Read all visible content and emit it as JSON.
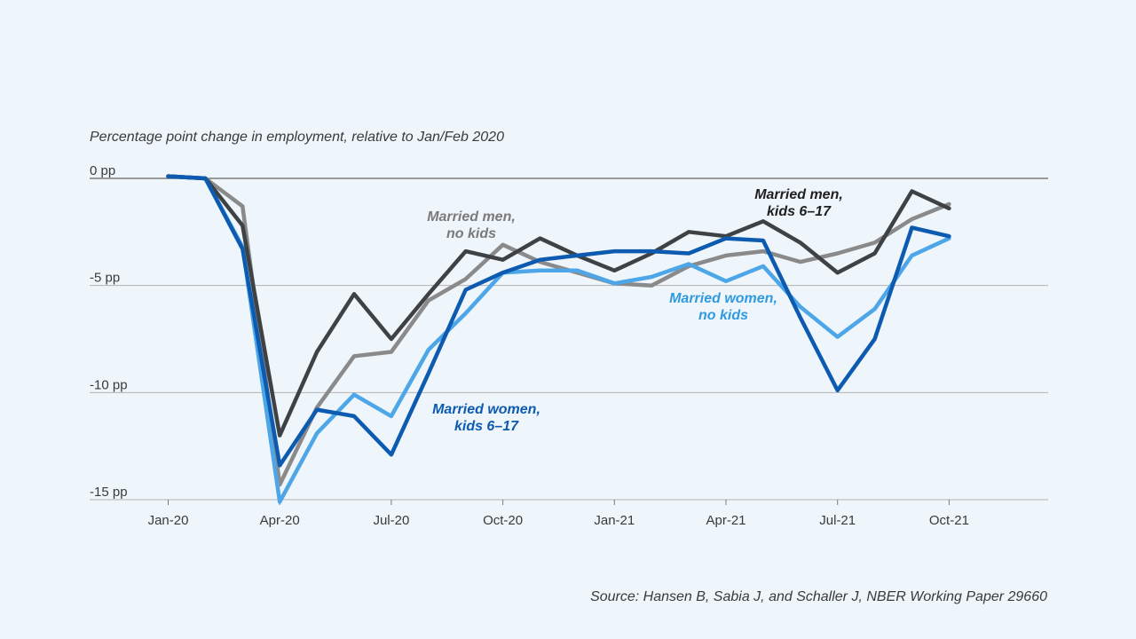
{
  "subtitle": "Percentage point change in employment, relative to Jan/Feb 2020",
  "source": "Source:  Hansen B, Sabia J,  and Schaller J, NBER Working Paper 29660",
  "chart_data": {
    "type": "line",
    "title": "",
    "ylabel": "Percentage point change in employment, relative to Jan/Feb 2020",
    "xlabel": "",
    "ylim": [
      -15,
      0
    ],
    "y_ticks": [
      0,
      -5,
      -10,
      -15
    ],
    "y_tick_labels": [
      "0 pp",
      "-5 pp",
      "-10 pp",
      "-15 pp"
    ],
    "x": [
      "Jan-20",
      "Feb-20",
      "Mar-20",
      "Apr-20",
      "May-20",
      "Jun-20",
      "Jul-20",
      "Aug-20",
      "Sep-20",
      "Oct-20",
      "Nov-20",
      "Dec-20",
      "Jan-21",
      "Feb-21",
      "Mar-21",
      "Apr-21",
      "May-21",
      "Jun-21",
      "Jul-21",
      "Aug-21",
      "Sep-21",
      "Oct-21"
    ],
    "x_tick_labels": [
      "Jan-20",
      "Apr-20",
      "Jul-20",
      "Oct-20",
      "Jan-21",
      "Apr-21",
      "Jul-21",
      "Oct-21"
    ],
    "grid": "horizontal",
    "series": [
      {
        "name": "Married men, no kids",
        "label_lines": [
          "Married men,",
          "no kids"
        ],
        "color": "#8a8a8a",
        "values": [
          0.1,
          0.0,
          -1.3,
          -14.3,
          -10.7,
          -8.3,
          -8.1,
          -5.7,
          -4.7,
          -3.1,
          -3.9,
          -4.4,
          -4.9,
          -5.0,
          -4.1,
          -3.6,
          -3.4,
          -3.9,
          -3.5,
          -3.0,
          -1.9,
          -1.2
        ]
      },
      {
        "name": "Married women, no kids",
        "label_lines": [
          "Married women,",
          "no kids"
        ],
        "color": "#4da6e8",
        "values": [
          0.1,
          0.0,
          -3.2,
          -15.1,
          -11.9,
          -10.1,
          -11.1,
          -8.0,
          -6.3,
          -4.4,
          -4.3,
          -4.3,
          -4.9,
          -4.6,
          -4.0,
          -4.8,
          -4.1,
          -6.0,
          -7.4,
          -6.1,
          -3.6,
          -2.8
        ]
      },
      {
        "name": "Married men, kids 6–17",
        "label_lines": [
          "Married men,",
          "kids 6–17"
        ],
        "color": "#3f4245",
        "values": [
          0.1,
          0.0,
          -2.2,
          -12.0,
          -8.1,
          -5.4,
          -7.5,
          -5.4,
          -3.4,
          -3.8,
          -2.8,
          -3.6,
          -4.3,
          -3.5,
          -2.5,
          -2.7,
          -2.0,
          -3.0,
          -4.4,
          -3.5,
          -0.6,
          -1.4
        ]
      },
      {
        "name": "Married women, kids 6–17",
        "label_lines": [
          "Married women,",
          "kids 6–17"
        ],
        "color": "#0d5bb0",
        "values": [
          0.1,
          0.0,
          -3.3,
          -13.4,
          -10.8,
          -11.1,
          -12.9,
          -9.1,
          -5.2,
          -4.4,
          -3.8,
          -3.6,
          -3.4,
          -3.4,
          -3.5,
          -2.8,
          -2.9,
          -6.5,
          -9.9,
          -7.5,
          -2.3,
          -2.7
        ]
      }
    ]
  }
}
